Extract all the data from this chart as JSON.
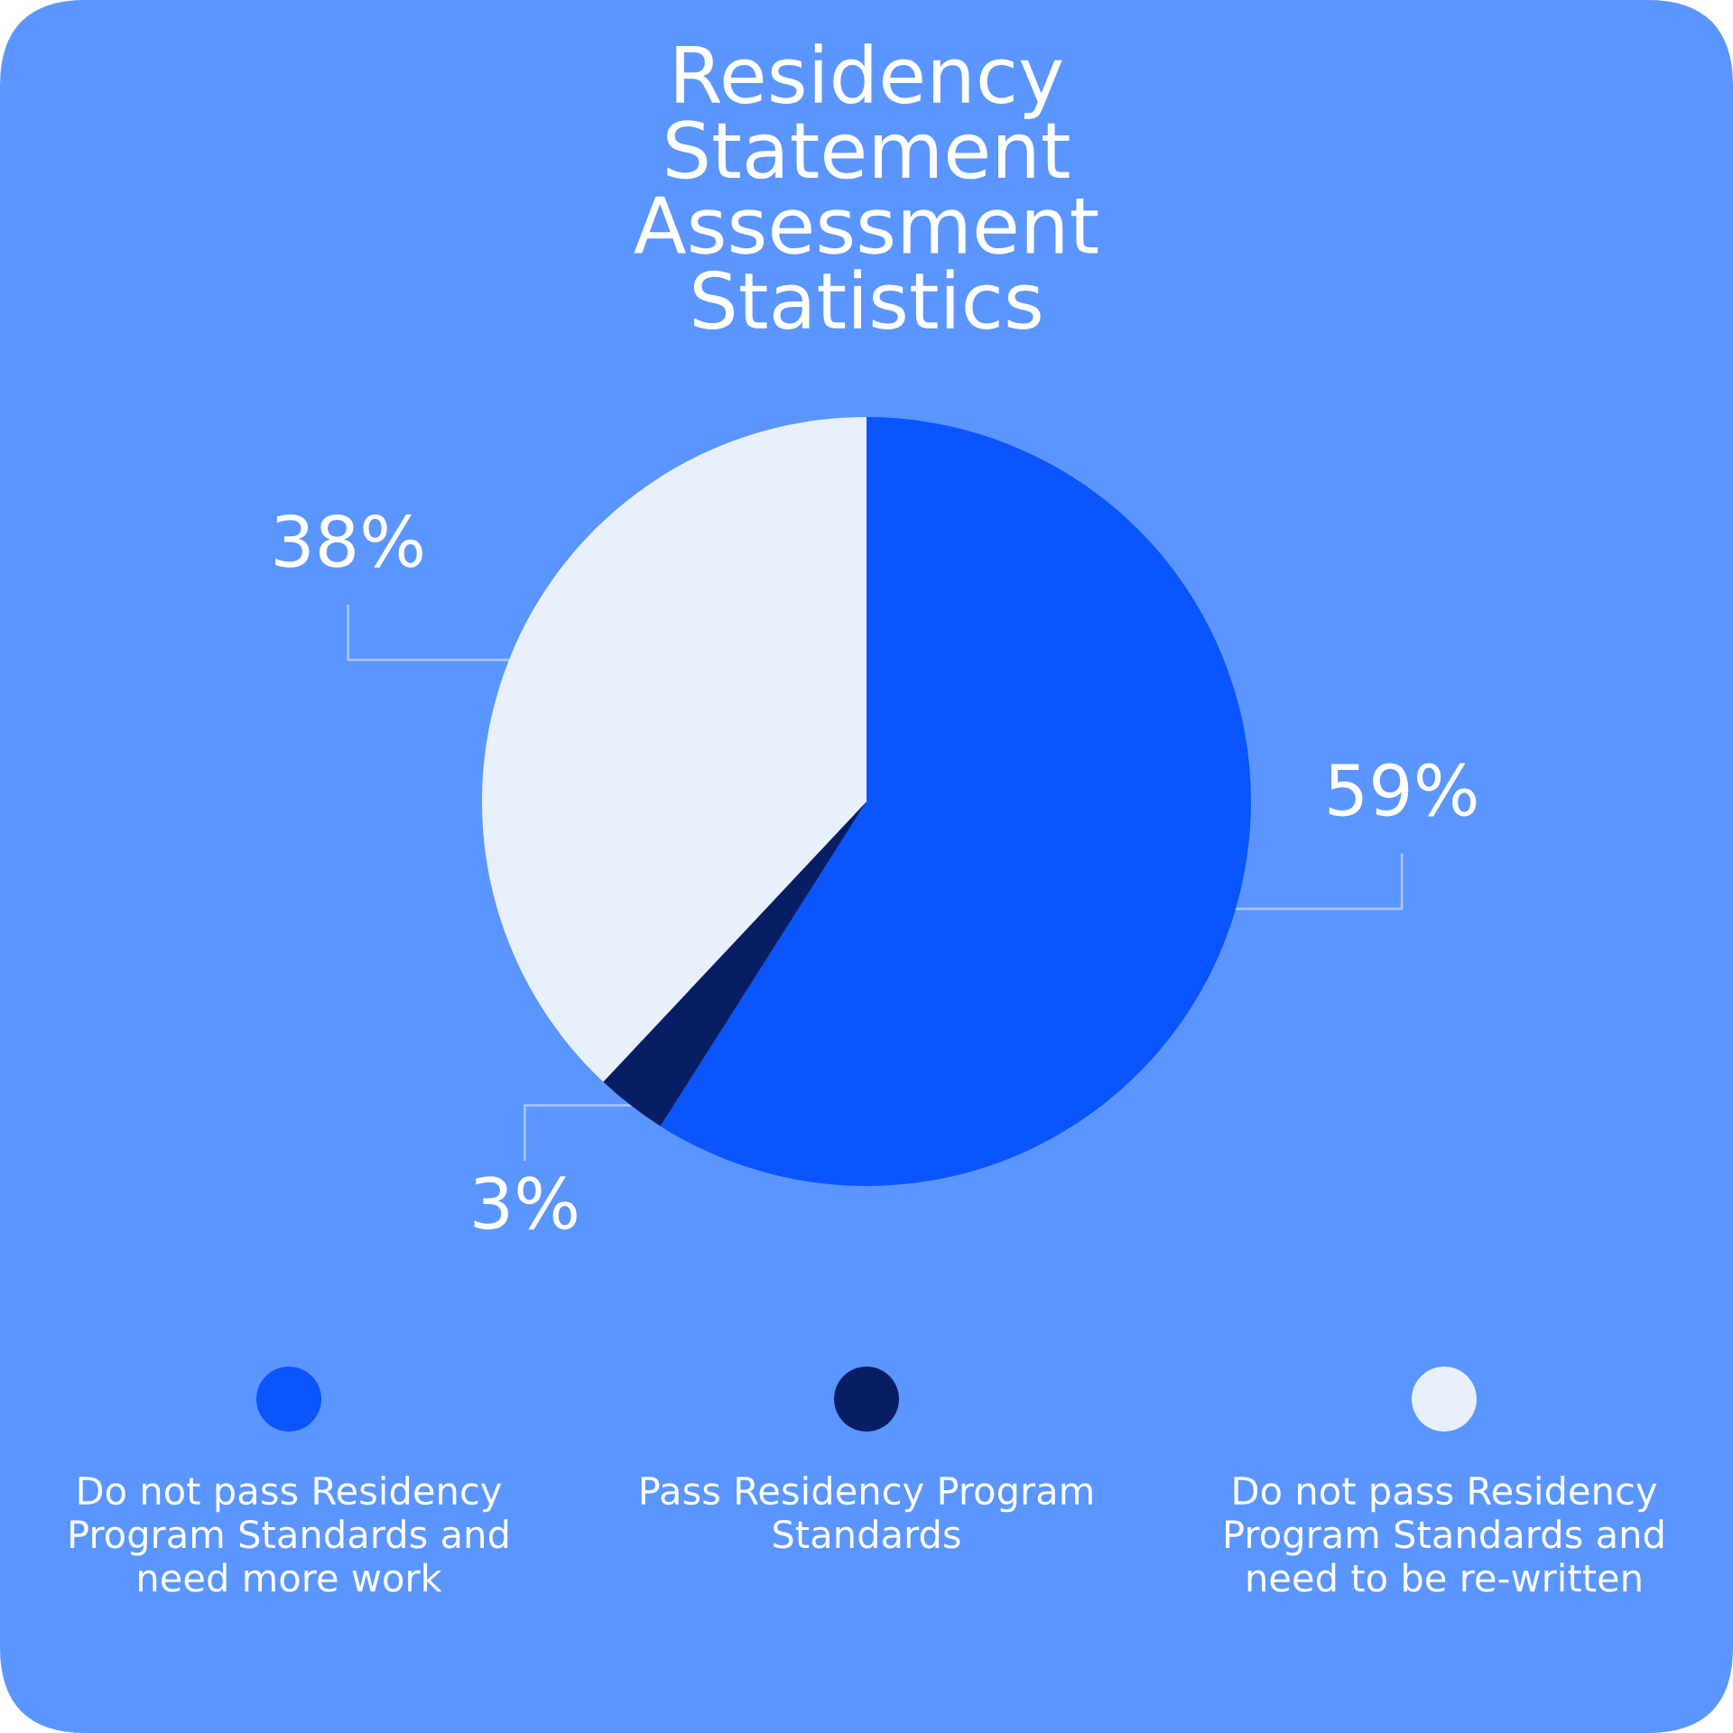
{
  "chart_data": {
    "type": "pie",
    "title": "Residency Statement Assessment Statistics",
    "categories": [
      "Do not pass Residency Program Standards and need more work",
      "Pass Residency Program Standards",
      "Do not pass Residency Program Standards and need to be re-written"
    ],
    "values": [
      59,
      3,
      38
    ],
    "colors": [
      "#0a55ff",
      "#081e64",
      "#e8f0fc"
    ],
    "value_labels": [
      "59%",
      "3%",
      "38%"
    ],
    "legend": "bottom"
  }
}
